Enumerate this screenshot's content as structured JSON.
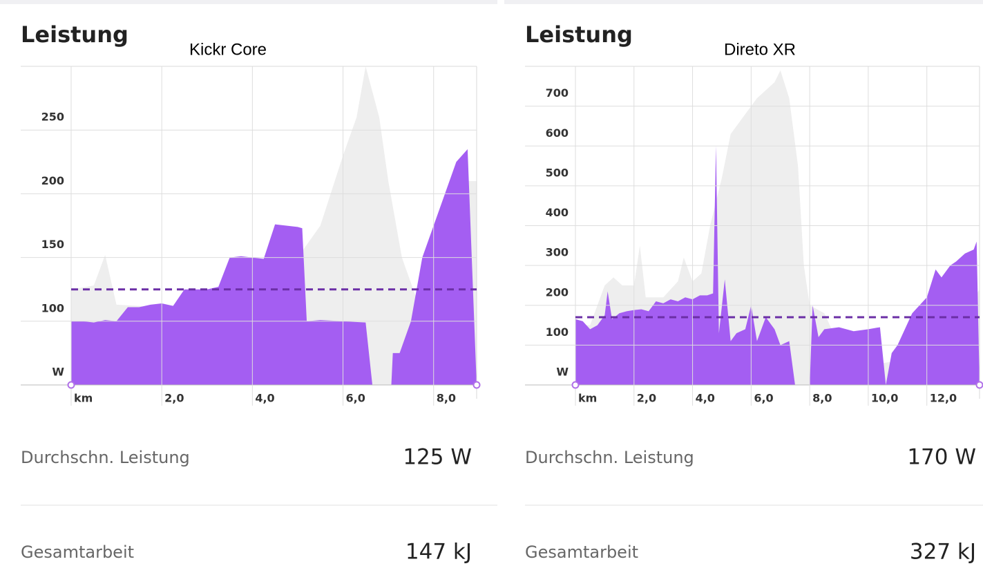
{
  "chart_data": [
    {
      "type": "area",
      "title": "Leistung",
      "subtitle": "Kickr Core",
      "series": [
        {
          "color": "#eeeeee",
          "x": [
            0,
            0.5,
            0.75,
            1.0,
            1.5,
            2.0,
            3.0,
            4.0,
            4.5,
            5.0,
            5.5,
            6.0,
            6.3,
            6.5,
            6.8,
            7.0,
            7.3,
            7.6,
            8.0,
            8.5,
            8.7,
            8.95
          ],
          "values": [
            125,
            128,
            152,
            113,
            112,
            110,
            108,
            115,
            118,
            150,
            175,
            230,
            260,
            300,
            260,
            210,
            150,
            120,
            125,
            150,
            210,
            210
          ]
        },
        {
          "color": "#a45ef2",
          "x": [
            0,
            0.25,
            0.5,
            0.75,
            1.0,
            1.25,
            1.5,
            1.75,
            2.0,
            2.25,
            2.5,
            2.75,
            3.0,
            3.25,
            3.5,
            3.75,
            4.0,
            4.25,
            4.5,
            4.75,
            5.0,
            5.1,
            5.2,
            5.5,
            6.0,
            6.5,
            6.8,
            7.0,
            7.1,
            7.25,
            7.5,
            7.75,
            8.0,
            8.25,
            8.5,
            8.75,
            8.95
          ],
          "values": [
            100,
            100,
            99,
            101,
            100,
            111,
            111,
            113,
            114,
            112,
            125,
            125,
            125,
            127,
            150,
            151,
            150,
            149,
            176,
            175,
            174,
            173,
            100,
            101,
            100,
            99,
            0,
            0,
            75,
            75,
            100,
            150,
            175,
            200,
            225,
            235,
            50
          ]
        }
      ],
      "average": 125,
      "average_color": "#6b2fa6",
      "xlim": [
        0,
        8.95
      ],
      "ylim": [
        50,
        300
      ],
      "xticks": [
        {
          "value": 0,
          "label": "km"
        },
        {
          "value": 2,
          "label": "2,0"
        },
        {
          "value": 4,
          "label": "4,0"
        },
        {
          "value": 6,
          "label": "6,0"
        },
        {
          "value": 8,
          "label": "8,0"
        }
      ],
      "yticks": [
        {
          "value": 50,
          "label": "W"
        },
        100,
        150,
        200,
        250
      ],
      "grid": true
    },
    {
      "type": "area",
      "title": "Leistung",
      "subtitle": "Direto XR",
      "series": [
        {
          "color": "#eeeeee",
          "x": [
            0,
            0.5,
            1.0,
            1.3,
            1.6,
            2.0,
            2.2,
            2.4,
            3.0,
            3.5,
            3.7,
            4.0,
            4.3,
            4.6,
            5.0,
            5.3,
            5.8,
            6.2,
            6.8,
            7.0,
            7.3,
            7.6,
            7.8,
            8.0,
            8.5,
            9.0,
            10.0,
            11.0,
            12.0,
            13.0,
            13.8
          ],
          "values": [
            150,
            150,
            250,
            270,
            250,
            250,
            350,
            220,
            220,
            260,
            320,
            260,
            280,
            400,
            520,
            630,
            680,
            720,
            760,
            790,
            720,
            550,
            300,
            200,
            180,
            100,
            50,
            60,
            100,
            150,
            240
          ]
        },
        {
          "color": "#a45ef2",
          "x": [
            0,
            0.25,
            0.5,
            0.75,
            1.0,
            1.1,
            1.25,
            1.5,
            1.75,
            2.0,
            2.25,
            2.5,
            2.75,
            3.0,
            3.25,
            3.5,
            3.75,
            4.0,
            4.25,
            4.5,
            4.7,
            4.8,
            4.9,
            5.1,
            5.3,
            5.5,
            5.8,
            6.0,
            6.2,
            6.5,
            6.8,
            7.0,
            7.3,
            7.5,
            8.0,
            8.1,
            8.3,
            8.5,
            9.0,
            9.5,
            10.0,
            10.4,
            10.6,
            10.8,
            11.0,
            11.5,
            12.0,
            12.3,
            12.5,
            12.8,
            13.0,
            13.3,
            13.6,
            13.7,
            13.8
          ],
          "values": [
            165,
            160,
            140,
            150,
            175,
            235,
            165,
            180,
            185,
            188,
            190,
            185,
            210,
            205,
            215,
            210,
            220,
            215,
            225,
            225,
            230,
            600,
            130,
            265,
            110,
            130,
            140,
            200,
            110,
            170,
            140,
            100,
            110,
            0,
            0,
            200,
            120,
            140,
            145,
            135,
            140,
            145,
            0,
            80,
            100,
            180,
            220,
            290,
            270,
            300,
            310,
            330,
            340,
            360,
            0
          ]
        }
      ],
      "average": 170,
      "average_color": "#6b2fa6",
      "xlim": [
        0,
        13.8
      ],
      "ylim": [
        0,
        800
      ],
      "xticks": [
        {
          "value": 0,
          "label": "km"
        },
        {
          "value": 2,
          "label": "2,0"
        },
        {
          "value": 4,
          "label": "4,0"
        },
        {
          "value": 6,
          "label": "6,0"
        },
        {
          "value": 8,
          "label": "8,0"
        },
        {
          "value": 10,
          "label": "10,0"
        },
        {
          "value": 12,
          "label": "12,0"
        }
      ],
      "yticks": [
        {
          "value": 0,
          "label": "W"
        },
        100,
        200,
        300,
        400,
        500,
        600,
        700
      ],
      "grid": true
    }
  ],
  "stats": [
    {
      "rows": [
        {
          "label": "Durchschn. Leistung",
          "value": "125 W"
        },
        {
          "label": "Gesamtarbeit",
          "value": "147 kJ"
        }
      ]
    },
    {
      "rows": [
        {
          "label": "Durchschn. Leistung",
          "value": "170 W"
        },
        {
          "label": "Gesamtarbeit",
          "value": "327 kJ"
        }
      ]
    }
  ]
}
